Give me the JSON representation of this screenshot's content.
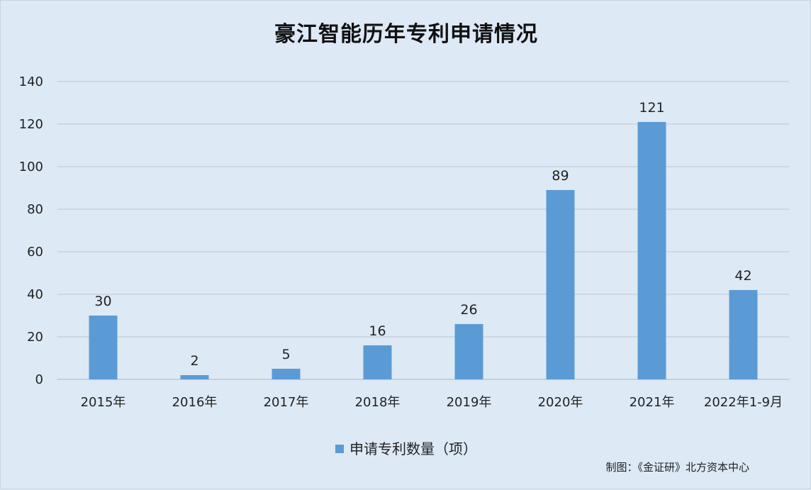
{
  "chart_data": {
    "type": "bar",
    "title": "豪江智能历年专利申请情况",
    "categories": [
      "2015年",
      "2016年",
      "2017年",
      "2018年",
      "2019年",
      "2020年",
      "2021年",
      "2022年1-9月"
    ],
    "series": [
      {
        "name": "申请专利数量（项）",
        "values": [
          30,
          2,
          5,
          16,
          26,
          89,
          121,
          42
        ]
      }
    ],
    "ylim": [
      0,
      140
    ],
    "yticks": [
      0,
      20,
      40,
      60,
      80,
      100,
      120,
      140
    ],
    "grid": true,
    "legend_position": "bottom",
    "bar_color": "#5b9bd5",
    "data_labels": true
  },
  "source_note": "制图：《金证研》北方资本中心"
}
